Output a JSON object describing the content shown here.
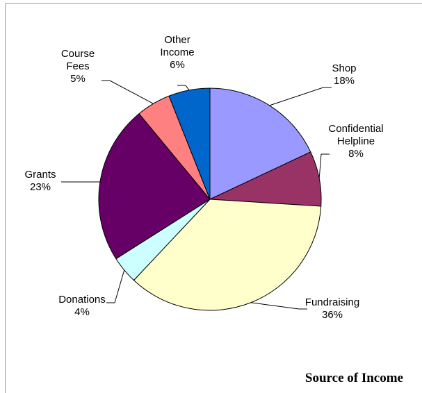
{
  "chart_data": {
    "type": "pie",
    "title": "Source of Income",
    "categories": [
      "Shop",
      "Confidential Helpline",
      "Fundraising",
      "Donations",
      "Grants",
      "Course Fees",
      "Other Income"
    ],
    "values": [
      18,
      8,
      36,
      4,
      23,
      5,
      6
    ],
    "value_labels": [
      "18%",
      "8%",
      "36%",
      "4%",
      "23%",
      "5%",
      "6%"
    ],
    "colors": [
      "#9999ff",
      "#993366",
      "#ffffcc",
      "#ccffff",
      "#660066",
      "#ff8080",
      "#0066cc"
    ]
  }
}
